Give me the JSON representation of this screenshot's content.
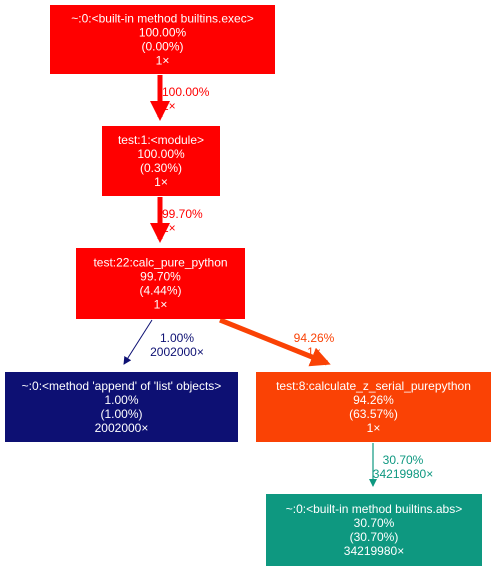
{
  "graph": {
    "nodes": [
      {
        "id": "builtins-exec",
        "lines": [
          "~:0:<built-in method builtins.exec>",
          "100.00%",
          "(0.00%)",
          "1×"
        ],
        "fill": "#ff0000",
        "text_color": "#ffffff"
      },
      {
        "id": "module",
        "lines": [
          "test:1:<module>",
          "100.00%",
          "(0.30%)",
          "1×"
        ],
        "fill": "#ff0000",
        "text_color": "#ffffff"
      },
      {
        "id": "calc-pure-python",
        "lines": [
          "test:22:calc_pure_python",
          "99.70%",
          "(4.44%)",
          "1×"
        ],
        "fill": "#ff0000",
        "text_color": "#ffffff"
      },
      {
        "id": "list-append",
        "lines": [
          "~:0:<method 'append' of 'list' objects>",
          "1.00%",
          "(1.00%)",
          "2002000×"
        ],
        "fill": "#0d1073",
        "text_color": "#ffffff"
      },
      {
        "id": "calculate-z-serial-purepython",
        "lines": [
          "test:8:calculate_z_serial_purepython",
          "94.26%",
          "(63.57%)",
          "1×"
        ],
        "fill": "#fa4205",
        "text_color": "#ffffff"
      },
      {
        "id": "builtins-abs",
        "lines": [
          "~:0:<built-in method builtins.abs>",
          "30.70%",
          "(30.70%)",
          "34219980×"
        ],
        "fill": "#0e9880",
        "text_color": "#ffffff"
      }
    ],
    "edges": [
      {
        "id": "exec-to-module",
        "from": "builtins-exec",
        "to": "module",
        "labels": [
          "100.00%",
          "1×"
        ],
        "color": "#ff0000"
      },
      {
        "id": "module-to-calc",
        "from": "module",
        "to": "calc-pure-python",
        "labels": [
          "99.70%",
          "1×"
        ],
        "color": "#ff0000"
      },
      {
        "id": "calc-to-append",
        "from": "calc-pure-python",
        "to": "list-append",
        "labels": [
          "1.00%",
          "2002000×"
        ],
        "color": "#0d1073"
      },
      {
        "id": "calc-to-calculate-z",
        "from": "calc-pure-python",
        "to": "calculate-z-serial-purepython",
        "labels": [
          "94.26%",
          "1×"
        ],
        "color": "#fa4205"
      },
      {
        "id": "calculate-z-to-abs",
        "from": "calculate-z-serial-purepython",
        "to": "builtins-abs",
        "labels": [
          "30.70%",
          "34219980×"
        ],
        "color": "#0e9880"
      }
    ]
  }
}
